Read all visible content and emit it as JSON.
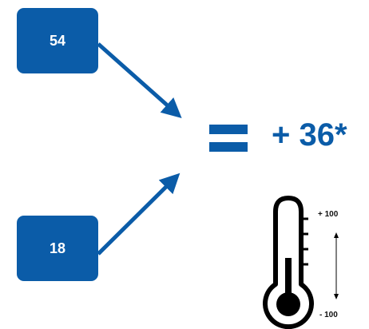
{
  "inputs": {
    "top_value": "54",
    "bottom_value": "18"
  },
  "result": {
    "text": "+ 36*"
  },
  "thermometer": {
    "max_label": "+ 100",
    "min_label": "- 100"
  },
  "colors": {
    "accent": "#0b5ca8",
    "thermometer": "#000000"
  },
  "icons": {
    "operator": "equals-icon",
    "gauge": "thermometer-icon"
  }
}
